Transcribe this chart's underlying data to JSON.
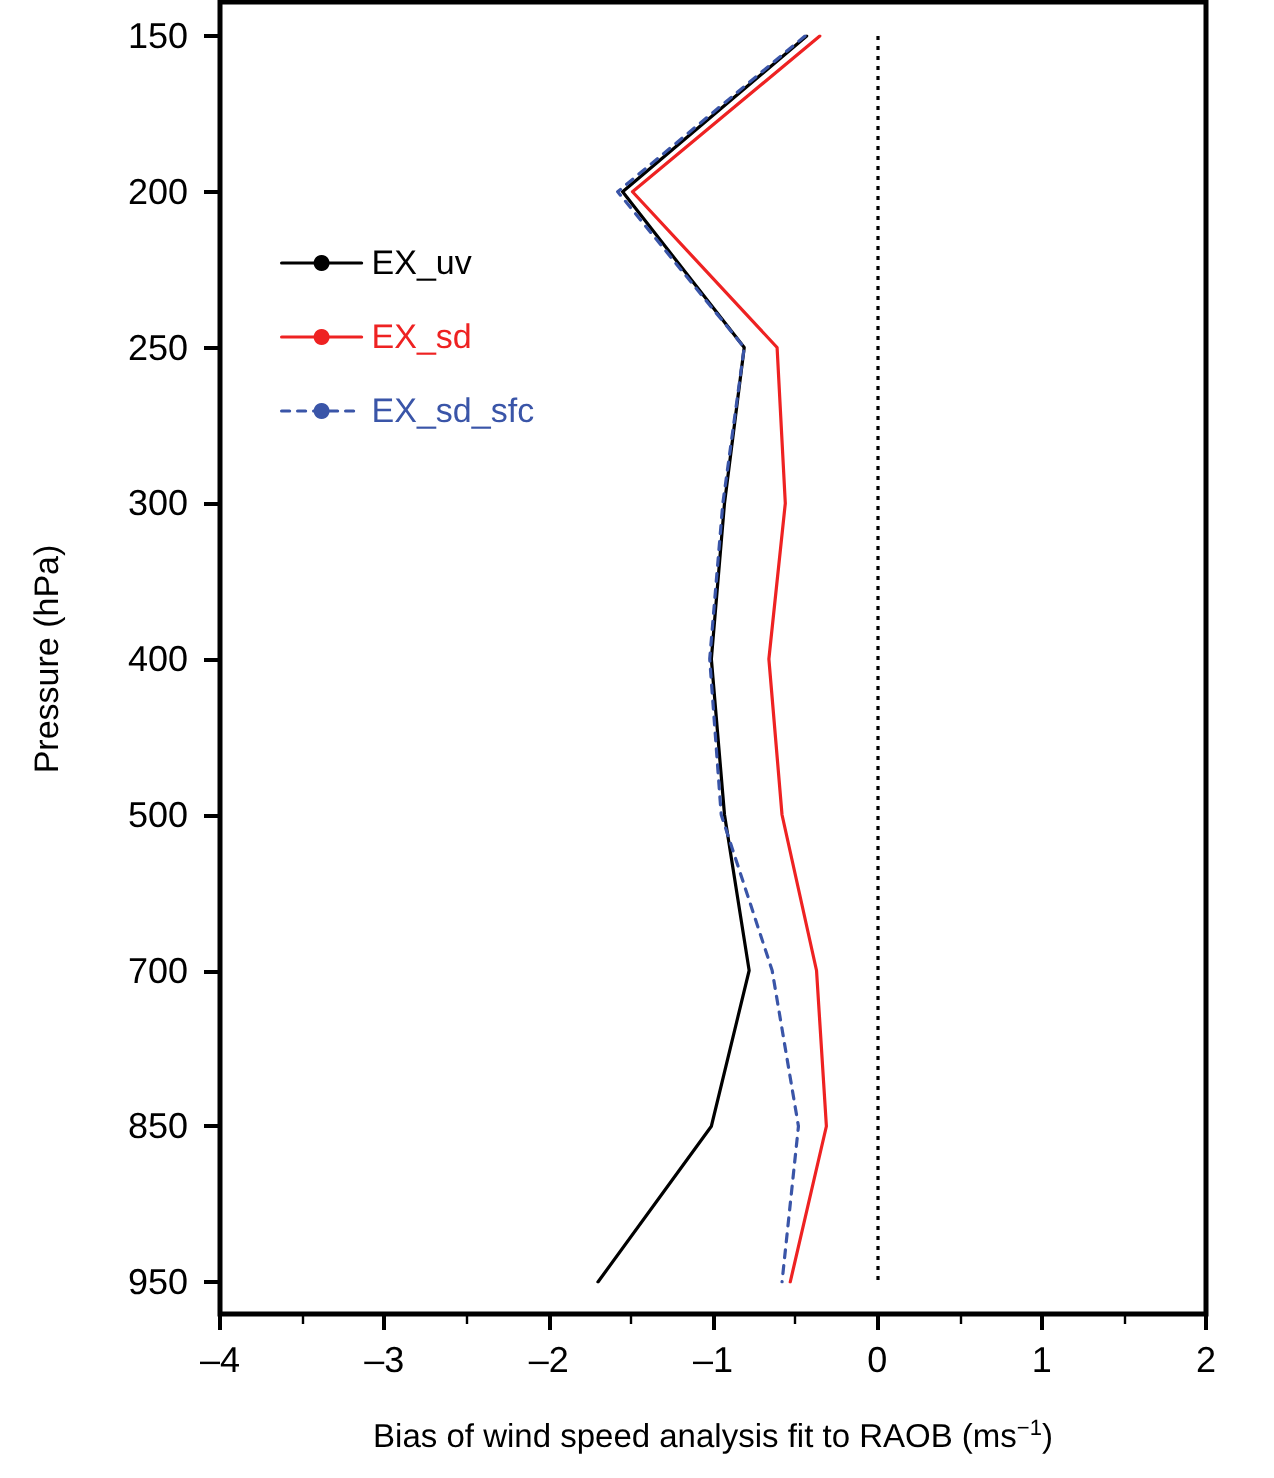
{
  "chart_data": {
    "type": "line",
    "orientation": "horizontal",
    "xlabel": "Bias of wind speed analysis fit to RAOB (ms$^{−1}$)",
    "ylabel": "Pressure (hPa)",
    "categories": [
      "150",
      "200",
      "250",
      "300",
      "400",
      "500",
      "700",
      "850",
      "950"
    ],
    "series": [
      {
        "name": "EX_uv",
        "color": "#000000",
        "line_style": "solid",
        "values": [
          -0.43,
          -1.55,
          -0.81,
          -0.93,
          -1.01,
          -0.93,
          -0.78,
          -1.01,
          -1.7
        ]
      },
      {
        "name": "EX_sd",
        "color": "#ee2222",
        "line_style": "solid",
        "values": [
          -0.35,
          -1.49,
          -0.61,
          -0.56,
          -0.66,
          -0.58,
          -0.37,
          -0.31,
          -0.53
        ]
      },
      {
        "name": "EX_sd_sfc",
        "color": "#3a55a8",
        "line_style": "dashed",
        "values": [
          -0.44,
          -1.58,
          -0.81,
          -0.94,
          -1.02,
          -0.95,
          -0.64,
          -0.48,
          -0.58
        ]
      }
    ],
    "xlim": [
      -4,
      2
    ],
    "xticks": [
      {
        "value": -4,
        "label": "–4"
      },
      {
        "value": -3,
        "label": "–3"
      },
      {
        "value": -2,
        "label": "–2"
      },
      {
        "value": -1,
        "label": "–1"
      },
      0,
      1,
      2
    ],
    "ref_lines": [
      {
        "axis": "x",
        "value": 0,
        "color": "#000000",
        "line_style": "dotted"
      }
    ],
    "legend": "top left",
    "grid": false,
    "marker": "none"
  }
}
